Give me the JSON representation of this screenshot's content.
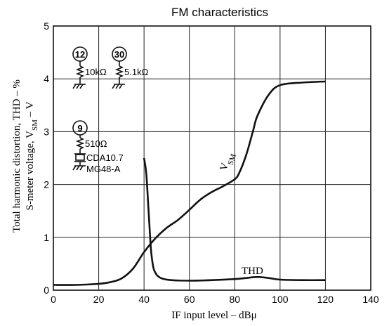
{
  "chart_data": {
    "type": "line",
    "title": "FM characteristics",
    "xlabel": "IF input level – dBμ",
    "ylabel_line1": "Total harmonic distortion, THD – %",
    "ylabel_line2_prefix": "S-meter voltage, V",
    "ylabel_line2_sub": "SM",
    "ylabel_line2_suffix": " – V",
    "xlim": [
      0,
      140
    ],
    "ylim": [
      0,
      5
    ],
    "xticks": [
      0,
      20,
      40,
      60,
      80,
      100,
      120,
      140
    ],
    "yticks": [
      0,
      1,
      2,
      3,
      4,
      5
    ],
    "grid": true,
    "series": [
      {
        "name": "V",
        "name_sub": "SM",
        "x": [
          0,
          10,
          20,
          25,
          30,
          35,
          40,
          45,
          50,
          55,
          60,
          65,
          70,
          75,
          80,
          82,
          85,
          88,
          90,
          95,
          100,
          110,
          120
        ],
        "y": [
          0.1,
          0.1,
          0.12,
          0.15,
          0.22,
          0.4,
          0.72,
          0.98,
          1.18,
          1.33,
          1.52,
          1.72,
          1.86,
          1.97,
          2.1,
          2.22,
          2.55,
          3.0,
          3.3,
          3.7,
          3.88,
          3.93,
          3.95
        ]
      },
      {
        "name": "THD",
        "x": [
          40,
          41,
          42,
          43,
          44,
          45,
          46,
          48,
          52,
          60,
          70,
          80,
          85,
          90,
          95,
          100,
          110,
          120
        ],
        "y": [
          2.5,
          2.2,
          1.5,
          0.8,
          0.45,
          0.33,
          0.27,
          0.22,
          0.19,
          0.18,
          0.19,
          0.21,
          0.23,
          0.25,
          0.23,
          0.2,
          0.19,
          0.19
        ]
      }
    ]
  },
  "circuit": {
    "pin1": "12",
    "res1": "10kΩ",
    "pin2": "30",
    "res2": "5.1kΩ",
    "pin3": "9",
    "res3": "510Ω",
    "filter_part1": "CDA10.7",
    "filter_part2": "MG48-A"
  }
}
